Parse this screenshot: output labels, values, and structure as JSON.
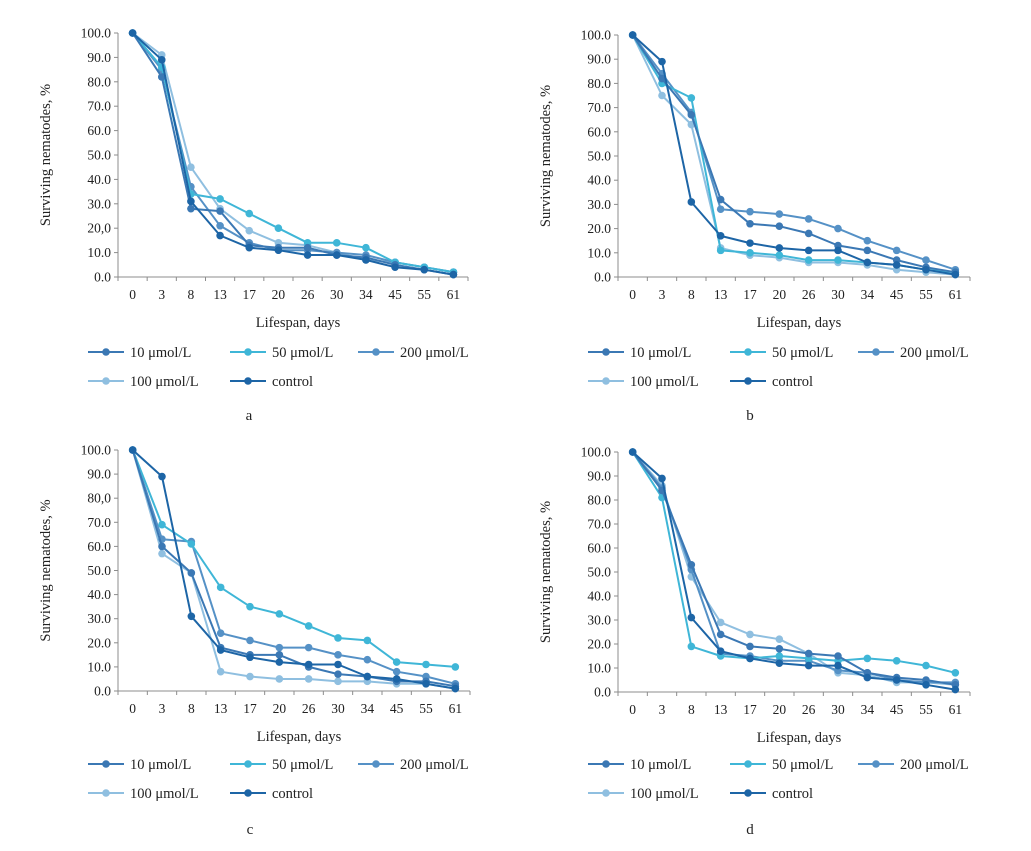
{
  "colors": {
    "10umol": "#3b78b4",
    "50umol": "#3fb6d7",
    "200umol": "#5591c6",
    "100umol": "#8fbfe0",
    "control": "#1d65a6",
    "axis": "#8c8c8c"
  },
  "legend_labels": {
    "10umol": "10 μmol/L",
    "50umol": "50 μmol/L",
    "200umol": "200 μmol/L",
    "100umol": "100 μmol/L",
    "control": "control"
  },
  "chart_data": [
    {
      "type": "line",
      "panel_label": "a",
      "xlabel": "Lifespan, days",
      "ylabel": "Surviving nematodes, %",
      "categories": [
        "0",
        "3",
        "8",
        "13",
        "17",
        "20",
        "26",
        "30",
        "34",
        "45",
        "55",
        "61"
      ],
      "y_ticks": [
        "0.0",
        "10.0",
        "20,0",
        "30.0",
        "40.0",
        "50.0",
        "60.0",
        "70.0",
        "80.0",
        "90.0",
        "100.0"
      ],
      "ylim": [
        0,
        100
      ],
      "legend_position": "bottom",
      "series": [
        {
          "key": "10umol",
          "name": "10 μmol/L",
          "values": [
            100,
            82,
            28,
            27,
            13,
            12,
            12,
            9,
            8,
            5,
            3,
            1
          ]
        },
        {
          "key": "50umol",
          "name": "50 μmol/L",
          "values": [
            100,
            86,
            34,
            32,
            26,
            20,
            14,
            14,
            12,
            6,
            4,
            2
          ]
        },
        {
          "key": "200umol",
          "name": "200 μmol/L",
          "values": [
            100,
            85,
            37,
            21,
            14,
            11,
            11,
            10,
            9,
            6,
            4,
            2
          ]
        },
        {
          "key": "100umol",
          "name": "100 μmol/L",
          "values": [
            100,
            91,
            45,
            28,
            19,
            14,
            13,
            10,
            7,
            6,
            4,
            2
          ]
        },
        {
          "key": "control",
          "name": "control",
          "values": [
            100,
            89,
            31,
            17,
            12,
            11,
            9,
            9,
            7,
            4,
            3,
            1
          ]
        }
      ]
    },
    {
      "type": "line",
      "panel_label": "b",
      "xlabel": "Lifespan, days",
      "ylabel": "Surviving nematodes, %",
      "categories": [
        "0",
        "3",
        "8",
        "13",
        "17",
        "20",
        "26",
        "30",
        "34",
        "45",
        "55",
        "61"
      ],
      "y_ticks": [
        "0.0",
        "10.0",
        "20.0",
        "30.0",
        "40.0",
        "50.0",
        "60.0",
        "70.0",
        "80.0",
        "90.0",
        "100.0"
      ],
      "ylim": [
        0,
        100
      ],
      "legend_position": "bottom",
      "series": [
        {
          "key": "10umol",
          "name": "10 μmol/L",
          "values": [
            100,
            82,
            67,
            32,
            22,
            21,
            18,
            13,
            11,
            7,
            4,
            2
          ]
        },
        {
          "key": "50umol",
          "name": "50 μmol/L",
          "values": [
            100,
            80,
            74,
            11,
            10,
            9,
            7,
            7,
            6,
            5,
            3,
            2
          ]
        },
        {
          "key": "200umol",
          "name": "200 μmol/L",
          "values": [
            100,
            84,
            68,
            28,
            27,
            26,
            24,
            20,
            15,
            11,
            7,
            3
          ]
        },
        {
          "key": "100umol",
          "name": "100 μmol/L",
          "values": [
            100,
            75,
            63,
            12,
            9,
            8,
            6,
            6,
            5,
            3,
            2,
            1
          ]
        },
        {
          "key": "control",
          "name": "control",
          "values": [
            100,
            89,
            31,
            17,
            14,
            12,
            11,
            11,
            6,
            5,
            3,
            1
          ]
        }
      ]
    },
    {
      "type": "line",
      "panel_label": "c",
      "xlabel": "Lifespan, days",
      "ylabel": "Surviving nematodes, %",
      "categories": [
        "0",
        "3",
        "8",
        "13",
        "17",
        "20",
        "26",
        "30",
        "34",
        "45",
        "55",
        "61"
      ],
      "y_ticks": [
        "0.0",
        "10.0",
        "20.0",
        "30.0",
        "40.0",
        "50.0",
        "60.0",
        "70.0",
        "80,0",
        "90.0",
        "100.0"
      ],
      "ylim": [
        0,
        100
      ],
      "legend_position": "bottom",
      "series": [
        {
          "key": "10umol",
          "name": "10 μmol/L",
          "values": [
            100,
            60,
            49,
            18,
            15,
            15,
            10,
            7,
            6,
            4,
            4,
            2
          ]
        },
        {
          "key": "50umol",
          "name": "50 μmol/L",
          "values": [
            100,
            69,
            61,
            43,
            35,
            32,
            27,
            22,
            21,
            12,
            11,
            10
          ]
        },
        {
          "key": "200umol",
          "name": "200 μmol/L",
          "values": [
            100,
            63,
            62,
            24,
            21,
            18,
            18,
            15,
            13,
            8,
            6,
            3
          ]
        },
        {
          "key": "100umol",
          "name": "100 μmol/L",
          "values": [
            100,
            57,
            49,
            8,
            6,
            5,
            5,
            4,
            4,
            3,
            3,
            1
          ]
        },
        {
          "key": "control",
          "name": "control",
          "values": [
            100,
            89,
            31,
            17,
            14,
            12,
            11,
            11,
            6,
            5,
            3,
            1
          ]
        }
      ]
    },
    {
      "type": "line",
      "panel_label": "d",
      "xlabel": "Lifespan, days",
      "ylabel": "Surviving nematodes, %",
      "categories": [
        "0",
        "3",
        "8",
        "13",
        "17",
        "20",
        "26",
        "30",
        "34",
        "45",
        "55",
        "61"
      ],
      "y_ticks": [
        "0.0",
        "10.0",
        "20.0",
        "30.0",
        "40.0",
        "50.0",
        "60.0",
        "70.0",
        "80.0",
        "90.0",
        "100.0"
      ],
      "ylim": [
        0,
        100
      ],
      "legend_position": "bottom",
      "series": [
        {
          "key": "10umol",
          "name": "10 μmol/L",
          "values": [
            100,
            84,
            53,
            24,
            19,
            18,
            16,
            15,
            8,
            6,
            5,
            3
          ]
        },
        {
          "key": "50umol",
          "name": "50 μmol/L",
          "values": [
            100,
            81,
            19,
            15,
            14,
            15,
            14,
            13,
            14,
            13,
            11,
            8
          ]
        },
        {
          "key": "200umol",
          "name": "200 μmol/L",
          "values": [
            100,
            85,
            51,
            16,
            15,
            13,
            13,
            9,
            8,
            5,
            4,
            4
          ]
        },
        {
          "key": "100umol",
          "name": "100 μmol/L",
          "values": [
            100,
            86,
            48,
            29,
            24,
            22,
            16,
            8,
            7,
            4,
            4,
            3
          ]
        },
        {
          "key": "control",
          "name": "control",
          "values": [
            100,
            89,
            31,
            17,
            14,
            12,
            11,
            11,
            6,
            5,
            3,
            1
          ]
        }
      ]
    }
  ]
}
